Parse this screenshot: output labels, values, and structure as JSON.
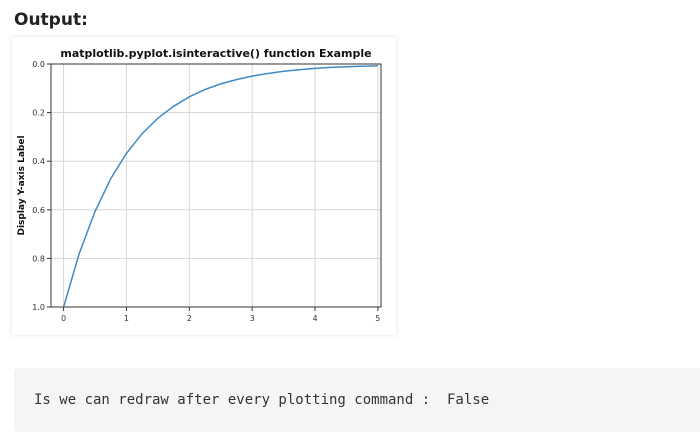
{
  "page": {
    "heading": "Output:"
  },
  "chart_data": {
    "type": "line",
    "title": "matplotlib.pyplot.isinteractive() function Example",
    "xlabel": "",
    "ylabel": "Display Y-axis Label",
    "xlim": [
      -0.2,
      5.05
    ],
    "ylim": [
      1.0,
      0.0
    ],
    "y_inverted": true,
    "grid": true,
    "xticks": [
      0,
      1,
      2,
      3,
      4,
      5
    ],
    "yticks": [
      0.0,
      0.2,
      0.4,
      0.6,
      0.8,
      1.0
    ],
    "ytick_labels": [
      "0.0",
      "0.2",
      "0.4",
      "0.6",
      "0.8",
      "1.0"
    ],
    "series": [
      {
        "name": "line",
        "color": "#3f8ac5",
        "x": [
          0,
          0.25,
          0.5,
          0.75,
          1,
          1.25,
          1.5,
          1.75,
          2,
          2.25,
          2.5,
          2.75,
          3,
          3.25,
          3.5,
          3.75,
          4,
          4.25,
          4.5,
          4.75,
          5
        ],
        "y": [
          1.0,
          0.779,
          0.607,
          0.472,
          0.368,
          0.287,
          0.223,
          0.174,
          0.135,
          0.105,
          0.082,
          0.064,
          0.05,
          0.039,
          0.03,
          0.024,
          0.018,
          0.014,
          0.011,
          0.009,
          0.007
        ]
      }
    ]
  },
  "console": {
    "output_text": "Is we can redraw after every plotting command :  False"
  }
}
